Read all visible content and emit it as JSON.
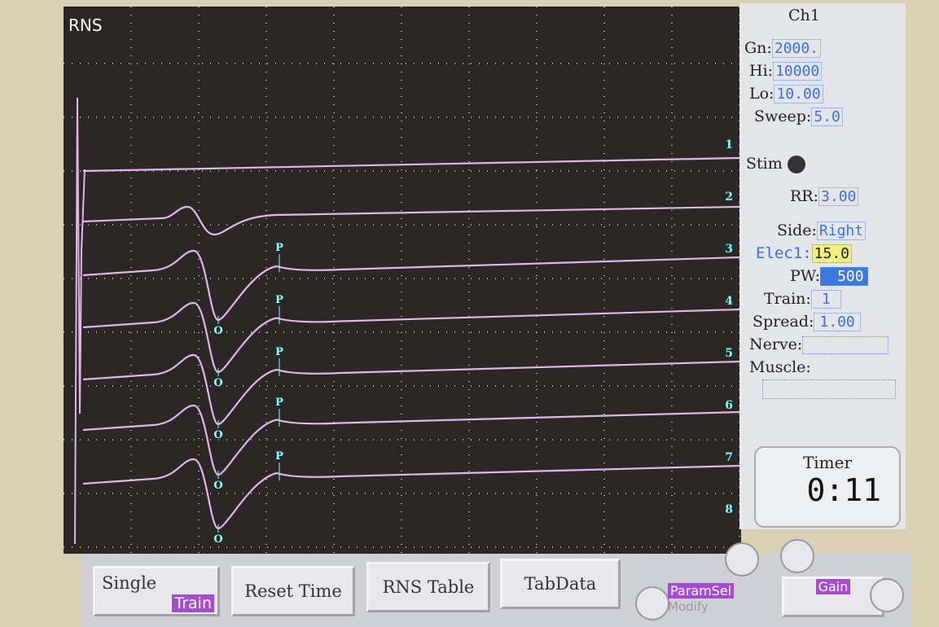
{
  "screen": {
    "title": "RNS",
    "trace_labels": [
      "1",
      "2",
      "3",
      "4",
      "5",
      "6",
      "7",
      "8"
    ],
    "markers": [
      {
        "peak": "P",
        "trough": "O"
      },
      {
        "peak": "P",
        "trough": "O"
      },
      {
        "peak": "P",
        "trough": "O"
      },
      {
        "peak": "P",
        "trough": "O"
      },
      {
        "peak": "P",
        "trough": "O"
      }
    ]
  },
  "panel": {
    "channel": "Ch1",
    "fields": [
      {
        "label": "Gn:",
        "value": "2000."
      },
      {
        "label": "Hi:",
        "value": "10000"
      },
      {
        "label": "Lo:",
        "value": "10.00"
      },
      {
        "label": "Sweep:",
        "value": "5.0"
      },
      {
        "label": "RR:",
        "value": "3.00"
      },
      {
        "label": "Side:",
        "value": "Right"
      },
      {
        "label": "Elec1:",
        "value": "15.0"
      },
      {
        "label": "PW:",
        "value": "500"
      },
      {
        "label": "Train:",
        "value": "1"
      },
      {
        "label": "Spread:",
        "value": "1.00"
      }
    ],
    "stim": "Stim",
    "nerve": "Nerve:",
    "muscle": "Muscle:",
    "timer": {
      "label": "Timer",
      "value": "0:11"
    }
  },
  "buttons": {
    "single": "Single",
    "train": "Train",
    "reset": "Reset Time",
    "table": "RNS Table",
    "tabdata": "TabData",
    "paramsel": "ParamSel",
    "modify": "Modify",
    "gain": "Gain"
  }
}
